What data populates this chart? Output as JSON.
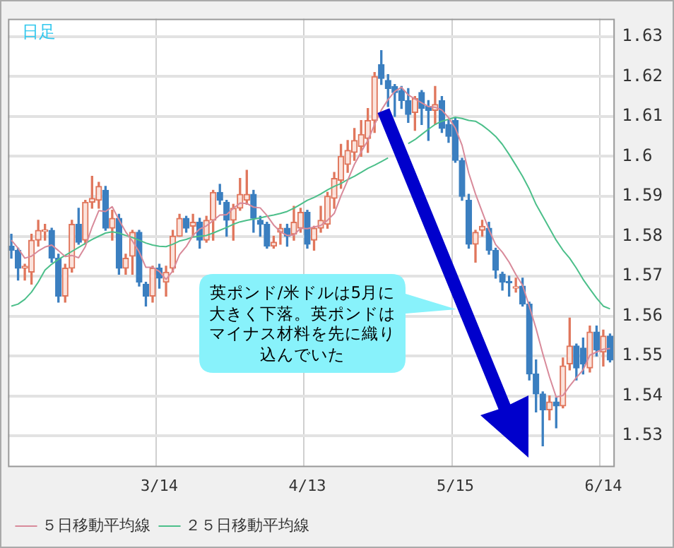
{
  "chart_data": {
    "type": "candlestick",
    "categories": [
      null,
      null,
      null,
      null,
      null,
      null,
      null,
      null,
      null,
      null,
      null,
      null,
      null,
      null,
      null,
      null,
      null,
      null,
      null,
      null,
      null,
      null,
      "3/14",
      null,
      null,
      null,
      null,
      null,
      null,
      null,
      null,
      null,
      null,
      null,
      null,
      null,
      null,
      null,
      null,
      null,
      null,
      null,
      null,
      null,
      "4/13",
      null,
      null,
      null,
      null,
      null,
      null,
      null,
      null,
      null,
      null,
      null,
      null,
      null,
      null,
      null,
      null,
      null,
      null,
      null,
      null,
      null,
      "5/15",
      null,
      null,
      null,
      null,
      null,
      null,
      null,
      null,
      null,
      null,
      null,
      null,
      null,
      null,
      null,
      null,
      null,
      null,
      null,
      null,
      null,
      "6/14",
      null
    ],
    "ohlc": [
      [
        1.5775,
        1.5805,
        1.5745,
        1.5765
      ],
      [
        1.5765,
        1.577,
        1.569,
        1.572
      ],
      [
        1.572,
        1.573,
        1.569,
        1.5725
      ],
      [
        1.571,
        1.5805,
        1.568,
        1.579
      ],
      [
        1.579,
        1.584,
        1.5775,
        1.5815
      ],
      [
        1.5812,
        1.583,
        1.579,
        1.5815
      ],
      [
        1.5815,
        1.582,
        1.5735,
        1.5745
      ],
      [
        1.5745,
        1.5755,
        1.5635,
        1.565
      ],
      [
        1.565,
        1.573,
        1.5635,
        1.572
      ],
      [
        1.572,
        1.584,
        1.571,
        1.583
      ],
      [
        1.583,
        1.587,
        1.578,
        1.5785
      ],
      [
        1.579,
        1.589,
        1.578,
        1.5885
      ],
      [
        1.5885,
        1.595,
        1.587,
        1.5895
      ],
      [
        1.589,
        1.5935,
        1.587,
        1.5925
      ],
      [
        1.5915,
        1.5925,
        1.5815,
        1.582
      ],
      [
        1.582,
        1.5865,
        1.579,
        1.5845
      ],
      [
        1.5845,
        1.5855,
        1.5705,
        1.572
      ],
      [
        1.572,
        1.5755,
        1.5705,
        1.5745
      ],
      [
        1.575,
        1.5815,
        1.5705,
        1.581
      ],
      [
        1.581,
        1.5815,
        1.5675,
        1.5685
      ],
      [
        1.568,
        1.5685,
        1.5625,
        1.565
      ],
      [
        1.565,
        1.5725,
        1.5635,
        1.572
      ],
      [
        1.572,
        1.573,
        1.567,
        1.5695
      ],
      [
        1.5685,
        1.5725,
        1.565,
        1.571
      ],
      [
        1.572,
        1.5815,
        1.571,
        1.58
      ],
      [
        1.58,
        1.5855,
        1.58,
        1.5845
      ],
      [
        1.5845,
        1.585,
        1.581,
        1.582
      ],
      [
        1.5825,
        1.5855,
        1.58,
        1.5835
      ],
      [
        1.5835,
        1.5845,
        1.577,
        1.579
      ],
      [
        1.579,
        1.585,
        1.5785,
        1.584
      ],
      [
        1.584,
        1.5915,
        1.579,
        1.591
      ],
      [
        1.591,
        1.593,
        1.588,
        1.589
      ],
      [
        1.5885,
        1.589,
        1.58,
        1.584
      ],
      [
        1.584,
        1.588,
        1.579,
        1.587
      ],
      [
        1.587,
        1.5945,
        1.5865,
        1.5905
      ],
      [
        1.589,
        1.5965,
        1.588,
        1.5905
      ],
      [
        1.5905,
        1.5915,
        1.581,
        1.5845
      ],
      [
        1.584,
        1.585,
        1.58,
        1.583
      ],
      [
        1.583,
        1.5835,
        1.577,
        1.5775
      ],
      [
        1.5775,
        1.58,
        1.577,
        1.5785
      ],
      [
        1.581,
        1.583,
        1.578,
        1.582
      ],
      [
        1.582,
        1.583,
        1.5775,
        1.58
      ],
      [
        1.5805,
        1.5875,
        1.579,
        1.5835
      ],
      [
        1.582,
        1.587,
        1.581,
        1.586
      ],
      [
        1.586,
        1.5865,
        1.577,
        1.578
      ],
      [
        1.579,
        1.5825,
        1.5765,
        1.582
      ],
      [
        1.582,
        1.5875,
        1.581,
        1.584
      ],
      [
        1.583,
        1.591,
        1.582,
        1.59
      ],
      [
        1.5895,
        1.596,
        1.587,
        1.5945
      ],
      [
        1.594,
        1.603,
        1.592,
        1.6
      ],
      [
        1.598,
        1.604,
        1.596,
        1.6015
      ],
      [
        1.601,
        1.607,
        1.599,
        1.604
      ],
      [
        1.6025,
        1.609,
        1.6,
        1.6055
      ],
      [
        1.6045,
        1.612,
        1.601,
        1.609
      ],
      [
        1.609,
        1.621,
        1.606,
        1.62
      ],
      [
        1.623,
        1.6265,
        1.618,
        1.6195
      ],
      [
        1.619,
        1.6205,
        1.6125,
        1.617
      ],
      [
        1.6175,
        1.618,
        1.61,
        1.616
      ],
      [
        1.6165,
        1.6175,
        1.612,
        1.614
      ],
      [
        1.614,
        1.617,
        1.6085,
        1.6105
      ],
      [
        1.611,
        1.615,
        1.6065,
        1.6145
      ],
      [
        1.616,
        1.6165,
        1.608,
        1.612
      ],
      [
        1.6125,
        1.614,
        1.604,
        1.6115
      ],
      [
        1.6115,
        1.6175,
        1.608,
        1.613
      ],
      [
        1.614,
        1.615,
        1.606,
        1.607
      ],
      [
        1.608,
        1.609,
        1.6035,
        1.605
      ],
      [
        1.609,
        1.6095,
        1.5985,
        1.599
      ],
      [
        1.599,
        1.5995,
        1.589,
        1.59
      ],
      [
        1.589,
        1.5905,
        1.577,
        1.578
      ],
      [
        1.578,
        1.5815,
        1.5735,
        1.581
      ],
      [
        1.5815,
        1.584,
        1.58,
        1.5825
      ],
      [
        1.582,
        1.5835,
        1.5755,
        1.5765
      ],
      [
        1.5765,
        1.577,
        1.5695,
        1.5715
      ],
      [
        1.5705,
        1.571,
        1.5665,
        1.5685
      ],
      [
        1.5687,
        1.57,
        1.565,
        1.5683
      ],
      [
        1.567,
        1.5695,
        1.566,
        1.5673
      ],
      [
        1.5675,
        1.5695,
        1.5625,
        1.563
      ],
      [
        1.563,
        1.5635,
        1.544,
        1.5455
      ],
      [
        1.5455,
        1.549,
        1.536,
        1.5405
      ],
      [
        1.5405,
        1.541,
        1.5275,
        1.5365
      ],
      [
        1.5365,
        1.54,
        1.534,
        1.5385
      ],
      [
        1.5385,
        1.5395,
        1.532,
        1.5375
      ],
      [
        1.5375,
        1.5495,
        1.537,
        1.5475
      ],
      [
        1.548,
        1.5595,
        1.5465,
        1.5525
      ],
      [
        1.5525,
        1.553,
        1.544,
        1.547
      ],
      [
        1.552,
        1.5545,
        1.5455,
        1.548
      ],
      [
        1.547,
        1.5575,
        1.546,
        1.556
      ],
      [
        1.556,
        1.5575,
        1.55,
        1.5515
      ],
      [
        1.551,
        1.5565,
        1.5475,
        1.555
      ],
      [
        1.555,
        1.5555,
        1.5485,
        1.549
      ]
    ],
    "series": [
      {
        "name": "５日移動平均線",
        "type": "line",
        "color": "#d88a9a",
        "values": [
          1.579,
          1.577,
          1.5745,
          1.575,
          1.5763,
          1.5773,
          1.5778,
          1.5764,
          1.5749,
          1.5752,
          1.5746,
          1.5774,
          1.5823,
          1.5864,
          1.5862,
          1.5874,
          1.5841,
          1.5811,
          1.5788,
          1.5761,
          1.5722,
          1.5722,
          1.5712,
          1.5692,
          1.5713,
          1.5754,
          1.5774,
          1.5802,
          1.5818,
          1.5826,
          1.5839,
          1.5853,
          1.5854,
          1.587,
          1.5883,
          1.5882,
          1.5873,
          1.5871,
          1.5852,
          1.5828,
          1.5811,
          1.5802,
          1.5803,
          1.582,
          1.5819,
          1.5823,
          1.5827,
          1.584,
          1.5857,
          1.5901,
          1.594,
          1.598,
          1.6011,
          1.604,
          1.608,
          1.6116,
          1.6142,
          1.6163,
          1.6173,
          1.6154,
          1.6144,
          1.6134,
          1.6125,
          1.6123,
          1.6116,
          1.6097,
          1.6071,
          1.6028,
          1.5958,
          1.5906,
          1.5861,
          1.5816,
          1.5779,
          1.576,
          1.5735,
          1.5704,
          1.5677,
          1.5625,
          1.5569,
          1.5506,
          1.5448,
          1.5397,
          1.5401,
          1.5425,
          1.5446,
          1.5465,
          1.5502,
          1.551,
          1.5517,
          1.5519
        ]
      },
      {
        "name": "２５日移動平均線",
        "type": "line",
        "color": "#4cbf8a",
        "values": [
          1.5625,
          1.563,
          1.5642,
          1.566,
          1.5685,
          1.5715,
          1.573,
          1.5742,
          1.5752,
          1.5762,
          1.5772,
          1.5782,
          1.5792,
          1.58,
          1.5808,
          1.5811,
          1.5808,
          1.5802,
          1.5797,
          1.579,
          1.5783,
          1.5778,
          1.5775,
          1.5774,
          1.578,
          1.5788,
          1.5792,
          1.5798,
          1.58,
          1.5802,
          1.5808,
          1.5815,
          1.5822,
          1.583,
          1.5836,
          1.584,
          1.5843,
          1.5846,
          1.585,
          1.5853,
          1.5857,
          1.5862,
          1.587,
          1.588,
          1.589,
          1.5897,
          1.5906,
          1.5916,
          1.5925,
          1.5932,
          1.5942,
          1.595,
          1.596,
          1.597,
          1.5978,
          1.5987,
          1.5996,
          null,
          null,
          1.6032,
          1.6042,
          1.6055,
          1.6068,
          1.608,
          1.6088,
          1.6093,
          1.6098,
          1.6095,
          1.609,
          1.6088,
          1.6078,
          1.6065,
          1.605,
          1.603,
          1.6005,
          1.5978,
          1.595,
          1.5918,
          1.588,
          1.585,
          1.582,
          1.579,
          1.5765,
          1.5745,
          1.572,
          1.5692,
          1.5668,
          1.5645,
          1.5625,
          1.5618
        ]
      }
    ],
    "annotations": [
      "日足",
      "英ポンド/米ドルは5月に大きく下落。英ポンドはマイナス材料を先に織り込んでいた"
    ],
    "ylim": [
      1.5225,
      1.6345
    ],
    "yticks": [
      1.53,
      1.54,
      1.55,
      1.56,
      1.57,
      1.58,
      1.59,
      1.6,
      1.61,
      1.62,
      1.63
    ],
    "grid": true,
    "legend": "bottom"
  }
}
